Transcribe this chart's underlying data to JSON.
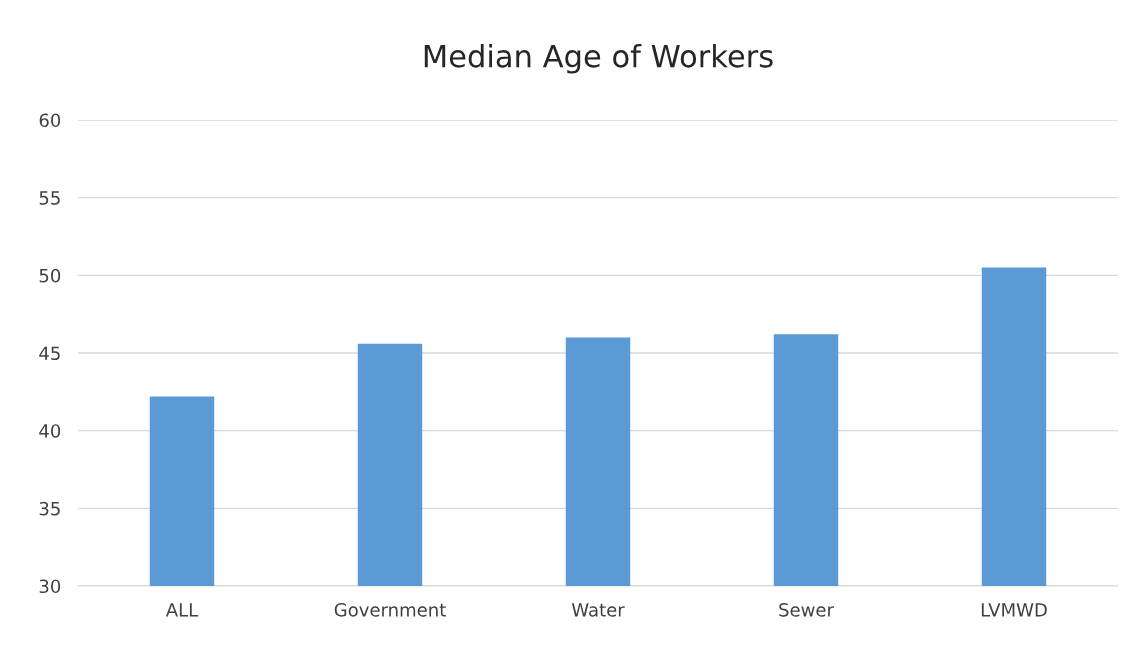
{
  "chart_data": {
    "type": "bar",
    "title": "Median Age of Workers",
    "categories": [
      "ALL",
      "Government",
      "Water",
      "Sewer",
      "LVMWD"
    ],
    "values": [
      42.2,
      45.6,
      46.0,
      46.2,
      50.5
    ],
    "color": "#5b9bd5",
    "ylim": [
      30,
      60
    ],
    "yticks": [
      30,
      35,
      40,
      45,
      50,
      55,
      60
    ],
    "grid": "y",
    "legend": false
  }
}
